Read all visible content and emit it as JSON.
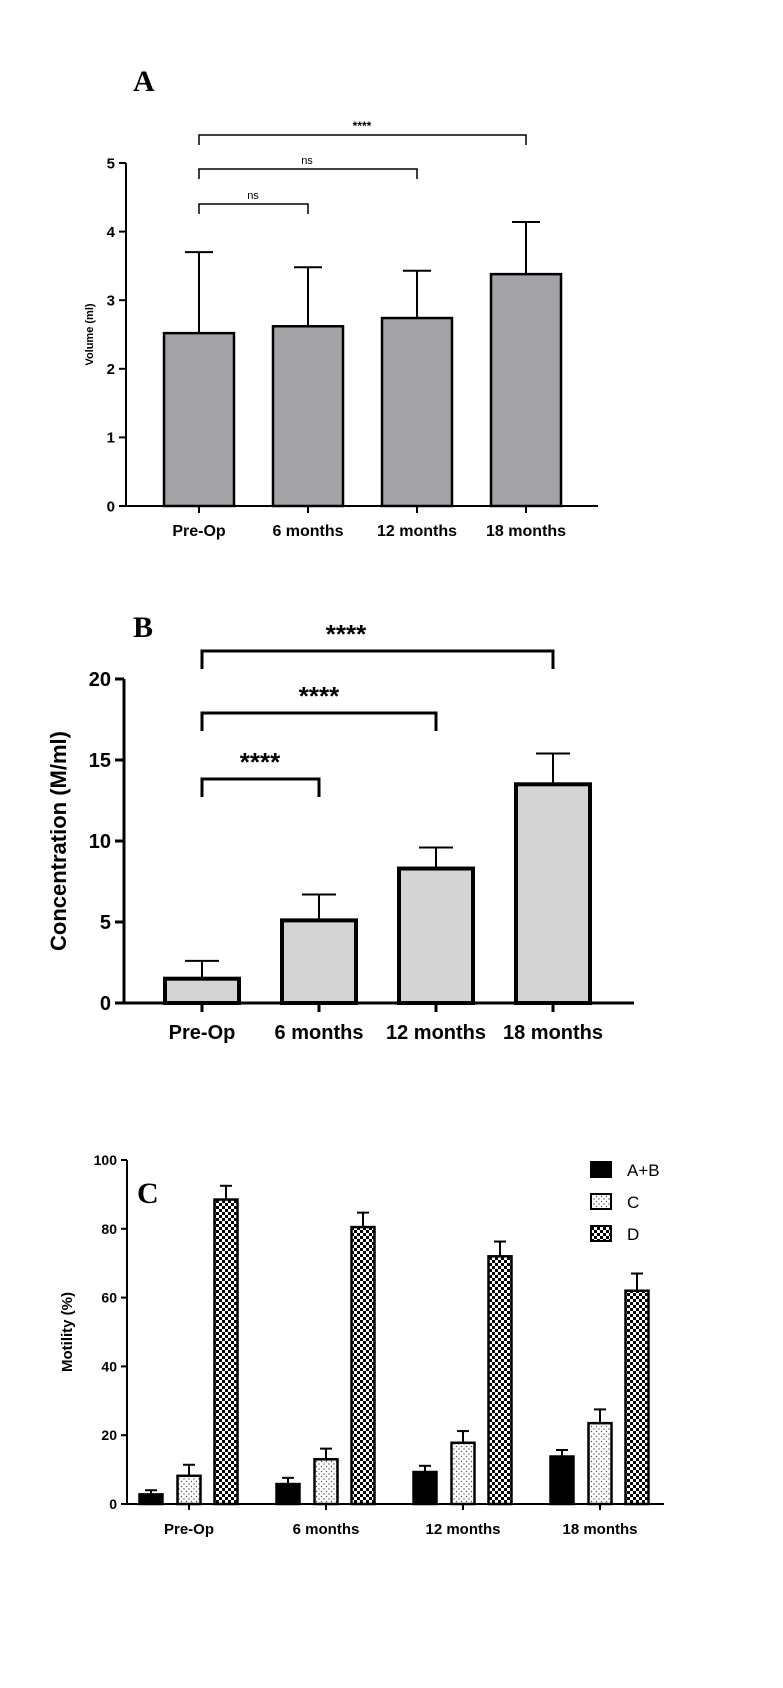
{
  "chart_data": [
    {
      "panel": "A",
      "type": "bar",
      "categories": [
        "Pre-Op",
        "6 months",
        "12 months",
        "18 months"
      ],
      "values": [
        2.52,
        2.62,
        2.74,
        3.38
      ],
      "errors": [
        1.18,
        0.86,
        0.69,
        0.76
      ],
      "ylabel": "Volume (ml)",
      "xlabel": "",
      "ylim": [
        0,
        5
      ],
      "yticks": [
        "0",
        "1",
        "2",
        "3",
        "4",
        "5"
      ],
      "bar_color": "#a3a3a8",
      "comparisons": [
        {
          "from": 0,
          "to": 1,
          "label": "ns"
        },
        {
          "from": 0,
          "to": 2,
          "label": "ns"
        },
        {
          "from": 0,
          "to": 3,
          "label": "****"
        }
      ]
    },
    {
      "panel": "B",
      "type": "bar",
      "categories": [
        "Pre-Op",
        "6 months",
        "12 months",
        "18 months"
      ],
      "values": [
        1.5,
        5.1,
        8.3,
        13.5
      ],
      "errors": [
        1.1,
        1.6,
        1.3,
        1.9
      ],
      "ylabel": "Concentration (M/ml)",
      "xlabel": "",
      "ylim": [
        0,
        20
      ],
      "yticks": [
        "0",
        "5",
        "10",
        "15",
        "20"
      ],
      "bar_color": "#d4d4d4",
      "comparisons": [
        {
          "from": 0,
          "to": 1,
          "label": "****"
        },
        {
          "from": 0,
          "to": 2,
          "label": "****"
        },
        {
          "from": 0,
          "to": 3,
          "label": "****"
        }
      ]
    },
    {
      "panel": "C",
      "type": "bar",
      "categories": [
        "Pre-Op",
        "6 months",
        "12 months",
        "18 months"
      ],
      "series": [
        {
          "name": "A+B",
          "values": [
            2.8,
            5.8,
            9.3,
            13.8
          ],
          "errors": [
            1.2,
            1.8,
            1.8,
            1.9
          ],
          "pattern": "solid"
        },
        {
          "name": "C",
          "values": [
            8.2,
            13.0,
            17.8,
            23.5
          ],
          "errors": [
            3.2,
            3.1,
            3.4,
            4.0
          ],
          "pattern": "dots"
        },
        {
          "name": "D",
          "values": [
            88.5,
            80.5,
            72.0,
            62.0
          ],
          "errors": [
            4.0,
            4.2,
            4.3,
            5.0
          ],
          "pattern": "checker"
        }
      ],
      "ylabel": "Motility (%)",
      "xlabel": "",
      "ylim": [
        0,
        100
      ],
      "yticks": [
        "0",
        "20",
        "40",
        "60",
        "80",
        "100"
      ],
      "legend": "top-right"
    }
  ]
}
